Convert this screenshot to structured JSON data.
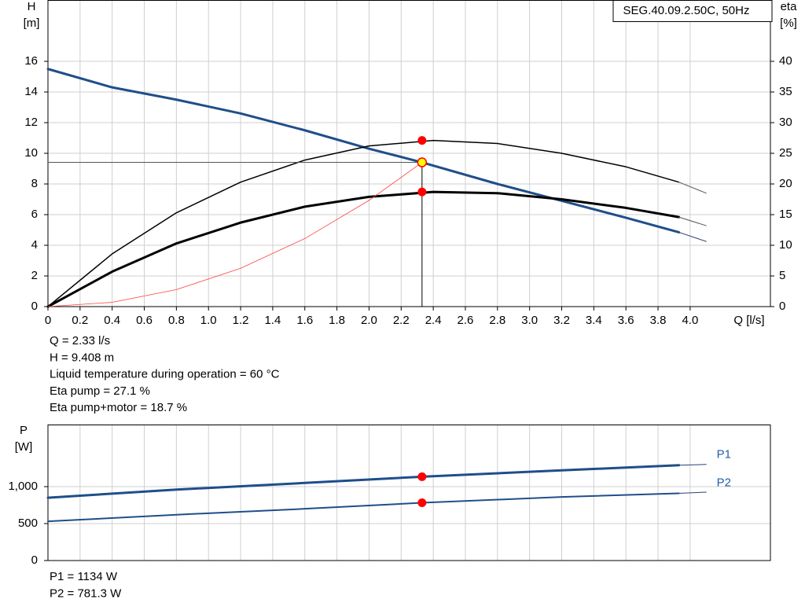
{
  "chart_data": [
    {
      "type": "line",
      "title": "SEG.40.09.2.50C, 50Hz",
      "x_label": "Q [l/s]",
      "y_label": [
        "H",
        "[m]"
      ],
      "y2_label": [
        "eta",
        "[%]"
      ],
      "xlim": [
        0,
        4.5
      ],
      "xticks": [
        0,
        0.2,
        0.4,
        0.6,
        0.8,
        {
          "value": 1,
          "label": "1.0"
        },
        1.2,
        1.4,
        1.6,
        1.8,
        {
          "value": 2,
          "label": "2.0"
        },
        2.2,
        2.4,
        2.6,
        2.8,
        {
          "value": 3,
          "label": "3.0"
        },
        3.2,
        3.4,
        3.6,
        3.8,
        {
          "value": 4,
          "label": "4.0"
        }
      ],
      "ylim": [
        0,
        20
      ],
      "yticks": [
        0,
        2,
        4,
        6,
        8,
        10,
        12,
        14,
        16
      ],
      "y2lim": [
        0,
        50
      ],
      "y2ticks": [
        0,
        5,
        10,
        15,
        20,
        25,
        30,
        35,
        40
      ],
      "grid": true,
      "series": [
        {
          "color": "#1f4e8a",
          "width": 3,
          "x": [
            0,
            0.4,
            0.8,
            1.2,
            1.6,
            2.0,
            2.33,
            2.8,
            3.2,
            3.6,
            3.93
          ],
          "values": [
            15.5,
            14.3,
            13.5,
            12.6,
            11.5,
            10.3,
            9.408,
            8.0,
            6.9,
            5.8,
            4.85
          ]
        },
        {
          "color": "#2b3f73",
          "width": 1,
          "x": [
            3.93,
            4.1
          ],
          "values": [
            4.85,
            4.25
          ]
        },
        {
          "color": "#000000",
          "width": 1.5,
          "axis": "y2",
          "x": [
            0,
            0.4,
            0.8,
            1.2,
            1.6,
            2.0,
            2.4,
            2.8,
            3.2,
            3.6,
            3.93
          ],
          "values": [
            0,
            8.6,
            15.3,
            20.3,
            23.9,
            26.2,
            27.1,
            26.6,
            25,
            22.8,
            20.3
          ]
        },
        {
          "color": "#555555",
          "width": 1,
          "axis": "y2",
          "x": [
            3.93,
            4.1
          ],
          "values": [
            20.3,
            18.5
          ]
        },
        {
          "color": "#000000",
          "width": 3,
          "axis": "y2",
          "x": [
            0,
            0.4,
            0.8,
            1.2,
            1.6,
            2.0,
            2.4,
            2.8,
            3.2,
            3.6,
            3.93
          ],
          "values": [
            0,
            5.7,
            10.3,
            13.7,
            16.3,
            17.9,
            18.7,
            18.5,
            17.5,
            16.1,
            14.6
          ]
        },
        {
          "color": "#555555",
          "width": 1,
          "axis": "y2",
          "x": [
            3.93,
            4.1
          ],
          "values": [
            14.6,
            13.2
          ]
        },
        {
          "color": "#ff4040",
          "width": 0.8,
          "x": [
            0,
            0.4,
            0.8,
            1.2,
            1.6,
            2.0,
            2.33
          ],
          "values": [
            0,
            0.28,
            1.11,
            2.5,
            4.44,
            6.93,
            9.408
          ]
        }
      ],
      "markers": [
        {
          "x": 2.33,
          "y": 9.408,
          "color": "#ffff00",
          "guides": true
        },
        {
          "x": 2.33,
          "y": 27.1,
          "axis": "y2",
          "color": "#ff0000"
        },
        {
          "x": 2.33,
          "y": 18.7,
          "axis": "y2",
          "color": "#ff0000"
        }
      ],
      "annotations": [
        "Q = 2.33 l/s",
        "H = 9.408 m",
        "Liquid temperature during operation = 60 °C",
        "Eta pump = 27.1 %",
        "Eta pump+motor = 18.7 %"
      ]
    },
    {
      "type": "line",
      "y_label": [
        "P",
        "[W]"
      ],
      "xlim": [
        0,
        4.5
      ],
      "ylim": [
        0,
        1840
      ],
      "yticks": [
        0,
        500,
        {
          "value": 1000,
          "label": "1,000"
        }
      ],
      "grid": true,
      "series": [
        {
          "name": "P1",
          "color": "#1f4e8a",
          "width": 3,
          "x": [
            0,
            0.8,
            1.6,
            2.33,
            3.2,
            3.93
          ],
          "values": [
            850,
            960,
            1050,
            1134,
            1220,
            1290
          ]
        },
        {
          "color": "#2b3f73",
          "width": 1,
          "x": [
            3.93,
            4.1
          ],
          "values": [
            1290,
            1300
          ]
        },
        {
          "name": "P2",
          "color": "#1f4e8a",
          "width": 2,
          "x": [
            0,
            0.8,
            1.6,
            2.33,
            3.2,
            3.93
          ],
          "values": [
            530,
            620,
            700,
            781.3,
            860,
            910
          ]
        },
        {
          "color": "#2b3f73",
          "width": 1,
          "x": [
            3.93,
            4.1
          ],
          "values": [
            910,
            925
          ]
        }
      ],
      "markers": [
        {
          "x": 2.33,
          "y": 1134,
          "color": "#ff0000"
        },
        {
          "x": 2.33,
          "y": 781.3,
          "color": "#ff0000"
        }
      ],
      "annotations": [
        "P1 = 1134 W",
        "P2 = 781.3 W"
      ]
    }
  ]
}
